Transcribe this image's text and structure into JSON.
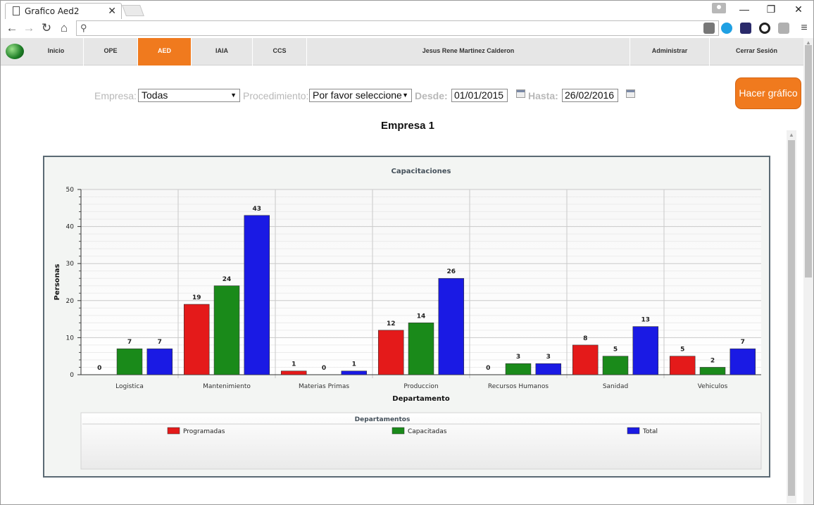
{
  "browser": {
    "tab_title": "Grafico Aed2",
    "tab_close": "✕",
    "minimize": "—",
    "restore": "❐",
    "close": "✕",
    "back": "←",
    "forward": "→",
    "reload": "↻",
    "home": "⌂",
    "search_glyph": "⚲",
    "menu": "≡",
    "address": ""
  },
  "nav": {
    "items": [
      {
        "label": "Inicio"
      },
      {
        "label": "OPE"
      },
      {
        "label": "AED",
        "active": true
      },
      {
        "label": "IAIA"
      },
      {
        "label": "CCS"
      },
      {
        "label": "Jesus Rene Martinez Calderon"
      },
      {
        "label": "Administrar"
      },
      {
        "label": "Cerrar Sesión"
      }
    ]
  },
  "filters": {
    "empresa_label": "Empresa:",
    "empresa_value": "Todas",
    "procedimiento_label": "Procedimiento:",
    "procedimiento_value": "Por favor seleccione",
    "desde_label": "Desde:",
    "desde_value": "01/01/2015",
    "hasta_label": "Hasta:",
    "hasta_value": "26/02/2016",
    "submit_label": "Hacer gráfico"
  },
  "page": {
    "company_title": "Empresa 1"
  },
  "chart_data": {
    "type": "bar",
    "title": "Capacitaciones",
    "xlabel": "Departamento",
    "ylabel": "Personas",
    "ylim": [
      0,
      50
    ],
    "yticks": [
      0,
      10,
      20,
      30,
      40,
      50
    ],
    "grid": true,
    "legend_title": "Departamentos",
    "legend_placement": "bottom",
    "categories": [
      "Logistica",
      "Mantenimiento",
      "Materias Primas",
      "Produccion",
      "Recursos Humanos",
      "Sanidad",
      "Vehiculos"
    ],
    "series": [
      {
        "name": "Programadas",
        "color": "#e41a1a",
        "values": [
          0,
          19,
          1,
          12,
          0,
          8,
          5
        ]
      },
      {
        "name": "Capacitadas",
        "color": "#1a8a1a",
        "values": [
          7,
          24,
          0,
          14,
          3,
          5,
          2
        ]
      },
      {
        "name": "Total",
        "color": "#1a1ae4",
        "values": [
          7,
          43,
          1,
          26,
          3,
          13,
          7
        ]
      }
    ]
  }
}
